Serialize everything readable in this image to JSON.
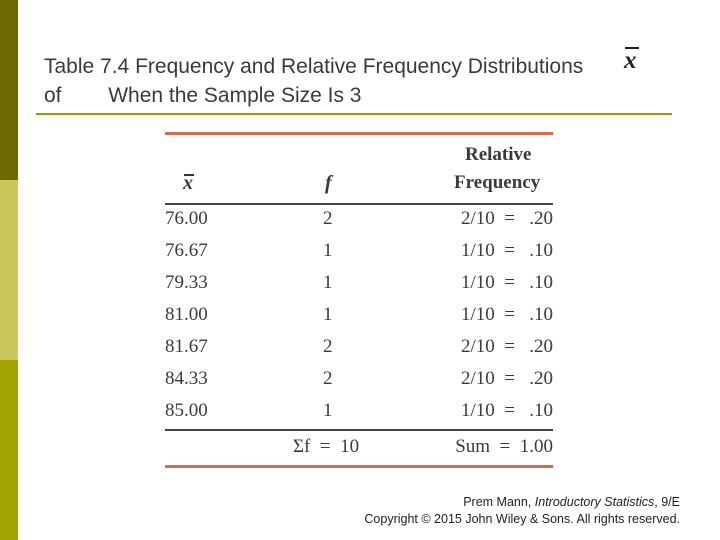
{
  "title": {
    "line1": "Table 7.4 Frequency and Relative Frequency Distributions",
    "line2": "of        When the Sample Size Is 3",
    "symbol": "x"
  },
  "table": {
    "headers": {
      "x": "x",
      "f": "f",
      "relative": "Relative",
      "frequency": "Frequency"
    },
    "rows": [
      {
        "x": "76.00",
        "f": "2",
        "rel": "2/10  =   .20"
      },
      {
        "x": "76.67",
        "f": "1",
        "rel": "1/10  =   .10"
      },
      {
        "x": "79.33",
        "f": "1",
        "rel": "1/10  =   .10"
      },
      {
        "x": "81.00",
        "f": "1",
        "rel": "1/10  =   .10"
      },
      {
        "x": "81.67",
        "f": "2",
        "rel": "2/10  =   .20"
      },
      {
        "x": "84.33",
        "f": "2",
        "rel": "2/10  =   .20"
      },
      {
        "x": "85.00",
        "f": "1",
        "rel": "1/10  =   .10"
      }
    ],
    "sum_f": "Σf  =  10",
    "sum_rel": "Sum  =  1.00"
  },
  "footer": {
    "author": "Prem Mann, ",
    "book": "Introductory Statistics",
    "edition": ", 9/E",
    "copyright": "Copyright © 2015 John Wiley & Sons. All rights reserved."
  },
  "colors": {
    "sidebar_dark": "#6b6b00",
    "sidebar_light": "#c8c85a",
    "sidebar_mid": "#a3a300",
    "table_rule": "#d96a4f",
    "title_rule": "#9a9a00"
  }
}
